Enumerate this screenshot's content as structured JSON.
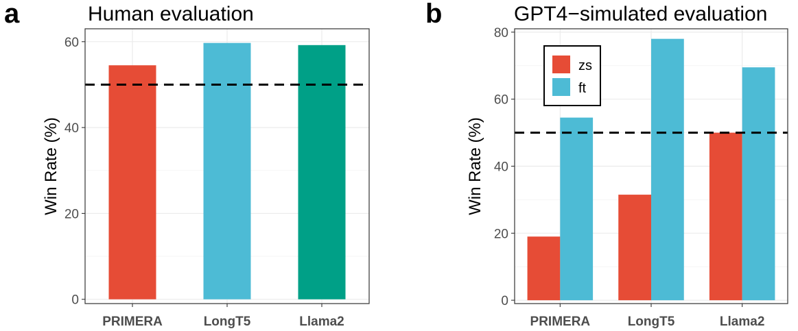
{
  "colors": {
    "red": "#e64c36",
    "blue": "#4dbbd5",
    "green": "#00a087"
  },
  "chart_data": [
    {
      "type": "bar",
      "panel": "a",
      "title": "Human evaluation",
      "xlabel": "",
      "ylabel": "Win Rate (%)",
      "categories": [
        "PRIMERA",
        "LongT5",
        "Llama2"
      ],
      "values": [
        54.5,
        59.7,
        59.2
      ],
      "bar_colors": [
        "#e64c36",
        "#4dbbd5",
        "#00a087"
      ],
      "yticks": [
        0,
        20,
        40,
        60
      ],
      "ylim": [
        -1,
        63
      ],
      "reference_line": 50,
      "grid": true
    },
    {
      "type": "bar",
      "panel": "b",
      "title": "GPT4−simulated evaluation",
      "xlabel": "",
      "ylabel": "Win Rate (%)",
      "categories": [
        "PRIMERA",
        "LongT5",
        "Llama2"
      ],
      "series": [
        {
          "name": "zs",
          "color": "#e64c36",
          "values": [
            19,
            31.5,
            50
          ]
        },
        {
          "name": "ft",
          "color": "#4dbbd5",
          "values": [
            54.5,
            78,
            69.5
          ]
        }
      ],
      "yticks": [
        0,
        20,
        40,
        60,
        80
      ],
      "ylim": [
        -1,
        81
      ],
      "reference_line": 50,
      "legend": "top-left",
      "grid": true
    }
  ]
}
